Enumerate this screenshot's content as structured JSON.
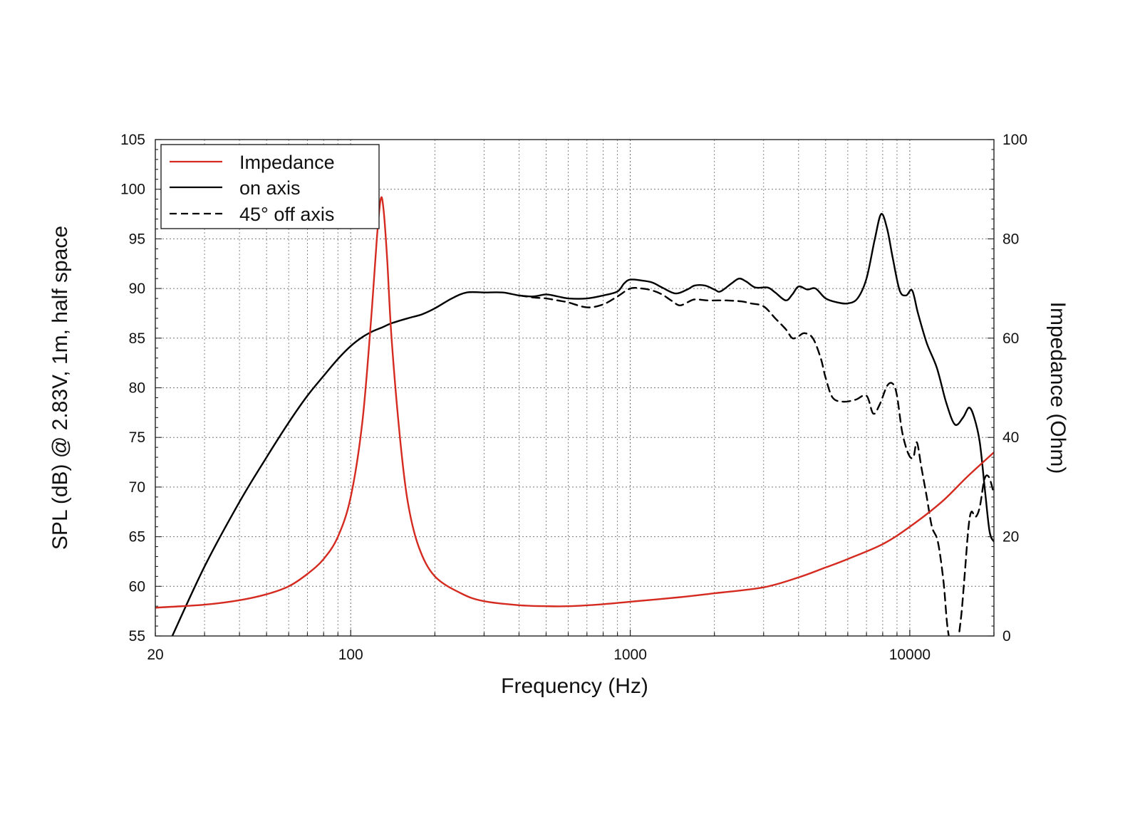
{
  "chart_data": {
    "type": "line",
    "xlabel": "Frequency (Hz)",
    "ylabel_left": "SPL (dB) @ 2.83V, 1m, half space",
    "ylabel_right": "Impedance (Ohm)",
    "x_scale": "log",
    "xlim": [
      20,
      20000
    ],
    "ylim_left": [
      55,
      105
    ],
    "ylim_right": [
      0,
      100
    ],
    "x_ticks": [
      20,
      100,
      1000,
      10000
    ],
    "x_tick_labels": [
      "20",
      "100",
      "1000",
      "10000"
    ],
    "y_left_ticks": [
      55,
      60,
      65,
      70,
      75,
      80,
      85,
      90,
      95,
      100,
      105
    ],
    "y_left_tick_labels": [
      "55",
      "60",
      "65",
      "70",
      "75",
      "80",
      "85",
      "90",
      "95",
      "100",
      "105"
    ],
    "y_right_ticks": [
      0,
      20,
      40,
      60,
      80,
      100
    ],
    "y_right_tick_labels": [
      "0",
      "20",
      "40",
      "60",
      "80",
      "100"
    ],
    "grid": true,
    "legend_position": "top-left",
    "colors": {
      "impedance": "#d42a20",
      "on_axis": "#000000",
      "off_axis": "#000000",
      "grid": "#777777"
    },
    "series": [
      {
        "name": "Impedance",
        "axis": "right",
        "style": "solid",
        "color": "#d42a20",
        "points": [
          [
            20,
            5.7
          ],
          [
            30,
            6.3
          ],
          [
            40,
            7.2
          ],
          [
            50,
            8.4
          ],
          [
            60,
            10.0
          ],
          [
            70,
            12.5
          ],
          [
            80,
            15.5
          ],
          [
            90,
            20.0
          ],
          [
            100,
            28.0
          ],
          [
            110,
            43.0
          ],
          [
            118,
            63.0
          ],
          [
            124,
            80.0
          ],
          [
            128,
            88.0
          ],
          [
            131,
            86.0
          ],
          [
            135,
            76.0
          ],
          [
            140,
            60.0
          ],
          [
            150,
            40.0
          ],
          [
            160,
            27.0
          ],
          [
            175,
            18.0
          ],
          [
            200,
            12.0
          ],
          [
            250,
            8.5
          ],
          [
            300,
            7.0
          ],
          [
            400,
            6.2
          ],
          [
            500,
            6.0
          ],
          [
            600,
            6.0
          ],
          [
            800,
            6.4
          ],
          [
            1000,
            6.9
          ],
          [
            1500,
            7.8
          ],
          [
            2000,
            8.6
          ],
          [
            3000,
            9.8
          ],
          [
            4000,
            11.8
          ],
          [
            5000,
            13.8
          ],
          [
            6000,
            15.5
          ],
          [
            8000,
            18.5
          ],
          [
            10000,
            22.0
          ],
          [
            13000,
            27.0
          ],
          [
            16000,
            32.0
          ],
          [
            20000,
            37.0
          ]
        ]
      },
      {
        "name": "on axis",
        "axis": "left",
        "style": "solid",
        "color": "#000000",
        "points": [
          [
            23,
            55.0
          ],
          [
            30,
            62.0
          ],
          [
            40,
            68.5
          ],
          [
            50,
            73.0
          ],
          [
            60,
            76.5
          ],
          [
            70,
            79.2
          ],
          [
            80,
            81.2
          ],
          [
            90,
            82.9
          ],
          [
            100,
            84.2
          ],
          [
            110,
            85.1
          ],
          [
            120,
            85.7
          ],
          [
            130,
            86.1
          ],
          [
            140,
            86.5
          ],
          [
            160,
            87.0
          ],
          [
            180,
            87.4
          ],
          [
            200,
            88.0
          ],
          [
            230,
            89.0
          ],
          [
            260,
            89.6
          ],
          [
            300,
            89.6
          ],
          [
            350,
            89.6
          ],
          [
            400,
            89.3
          ],
          [
            450,
            89.2
          ],
          [
            500,
            89.4
          ],
          [
            550,
            89.2
          ],
          [
            600,
            89.0
          ],
          [
            700,
            89.0
          ],
          [
            800,
            89.3
          ],
          [
            900,
            89.7
          ],
          [
            950,
            90.5
          ],
          [
            1000,
            90.9
          ],
          [
            1100,
            90.8
          ],
          [
            1200,
            90.6
          ],
          [
            1300,
            90.1
          ],
          [
            1450,
            89.5
          ],
          [
            1600,
            89.9
          ],
          [
            1700,
            90.3
          ],
          [
            1850,
            90.3
          ],
          [
            2000,
            89.9
          ],
          [
            2100,
            89.7
          ],
          [
            2300,
            90.5
          ],
          [
            2450,
            91.0
          ],
          [
            2600,
            90.7
          ],
          [
            2800,
            90.1
          ],
          [
            3100,
            90.1
          ],
          [
            3300,
            89.6
          ],
          [
            3600,
            88.8
          ],
          [
            3800,
            89.4
          ],
          [
            4000,
            90.2
          ],
          [
            4300,
            89.9
          ],
          [
            4600,
            90.0
          ],
          [
            5000,
            89.0
          ],
          [
            5500,
            88.6
          ],
          [
            6000,
            88.5
          ],
          [
            6500,
            89.0
          ],
          [
            7000,
            91.0
          ],
          [
            7500,
            95.0
          ],
          [
            7900,
            97.5
          ],
          [
            8300,
            96.0
          ],
          [
            8700,
            93.0
          ],
          [
            9200,
            89.8
          ],
          [
            9700,
            89.3
          ],
          [
            10200,
            89.8
          ],
          [
            10700,
            87.5
          ],
          [
            11500,
            84.5
          ],
          [
            12500,
            82.0
          ],
          [
            13500,
            78.5
          ],
          [
            14500,
            76.3
          ],
          [
            15500,
            77.0
          ],
          [
            16300,
            78.0
          ],
          [
            17000,
            77.0
          ],
          [
            17800,
            74.5
          ],
          [
            18600,
            69.5
          ],
          [
            19300,
            65.5
          ],
          [
            20000,
            64.5
          ]
        ]
      },
      {
        "name": "45° off axis",
        "axis": "left",
        "style": "dashed",
        "color": "#000000",
        "points": [
          [
            400,
            89.3
          ],
          [
            450,
            89.1
          ],
          [
            500,
            89.0
          ],
          [
            550,
            88.8
          ],
          [
            600,
            88.6
          ],
          [
            700,
            88.1
          ],
          [
            800,
            88.4
          ],
          [
            900,
            89.2
          ],
          [
            1000,
            90.0
          ],
          [
            1100,
            90.0
          ],
          [
            1200,
            89.8
          ],
          [
            1300,
            89.4
          ],
          [
            1400,
            88.8
          ],
          [
            1500,
            88.3
          ],
          [
            1600,
            88.6
          ],
          [
            1700,
            88.9
          ],
          [
            1900,
            88.8
          ],
          [
            2200,
            88.8
          ],
          [
            2500,
            88.7
          ],
          [
            2700,
            88.5
          ],
          [
            3000,
            88.2
          ],
          [
            3300,
            87.0
          ],
          [
            3600,
            85.9
          ],
          [
            3800,
            85.0
          ],
          [
            4000,
            85.2
          ],
          [
            4200,
            85.5
          ],
          [
            4500,
            85.0
          ],
          [
            4800,
            83.0
          ],
          [
            5000,
            81.0
          ],
          [
            5300,
            79.0
          ],
          [
            5800,
            78.6
          ],
          [
            6400,
            78.8
          ],
          [
            7000,
            79.2
          ],
          [
            7400,
            77.4
          ],
          [
            7800,
            78.3
          ],
          [
            8300,
            80.2
          ],
          [
            8700,
            80.4
          ],
          [
            9000,
            79.2
          ],
          [
            9400,
            75.5
          ],
          [
            9900,
            73.3
          ],
          [
            10300,
            73.0
          ],
          [
            10600,
            74.5
          ],
          [
            11000,
            72.0
          ],
          [
            11500,
            69.0
          ],
          [
            12000,
            66.0
          ],
          [
            12600,
            64.5
          ],
          [
            13200,
            60.5
          ],
          [
            13700,
            55.5
          ],
          [
            14500,
            53.0
          ],
          [
            15200,
            56.5
          ],
          [
            15700,
            61.0
          ],
          [
            16200,
            65.8
          ],
          [
            16600,
            67.5
          ],
          [
            17200,
            67.0
          ],
          [
            17800,
            68.0
          ],
          [
            18500,
            70.8
          ],
          [
            19200,
            71.0
          ],
          [
            20000,
            69.3
          ]
        ]
      }
    ]
  }
}
